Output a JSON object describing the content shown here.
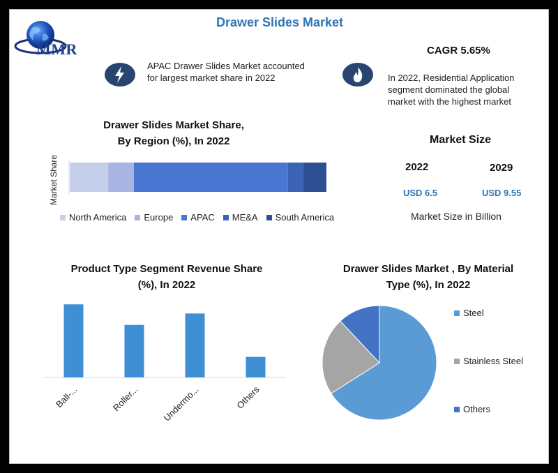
{
  "title": "Drawer Slides Market",
  "logo": {
    "text": "MMR",
    "icon": "globe-icon"
  },
  "note_left": {
    "icon": "lightning-icon",
    "lines": [
      "APAC Drawer Slides Market accounted",
      "for largest market share in 2022"
    ]
  },
  "cagr": "CAGR 5.65%",
  "note_right": {
    "icon": "flame-icon",
    "lines": [
      "In 2022, Residential Application",
      "segment dominated the global",
      "market with the highest market"
    ]
  },
  "market_size": {
    "title": "Market Size",
    "years": [
      "2022",
      "2029"
    ],
    "values": [
      "USD 6.5",
      "USD 9.55"
    ],
    "caption": "Market Size in Billion"
  },
  "chart_data": [
    {
      "type": "bar",
      "orientation": "horizontal-stacked",
      "title_lines": [
        "Drawer Slides Market Share,",
        "By Region (%), In 2022"
      ],
      "ylabel": "Market Share",
      "series": [
        {
          "name": "North America",
          "value": 15,
          "color": "#c5cfe9"
        },
        {
          "name": "Europe",
          "value": 10,
          "color": "#a8b5e2"
        },
        {
          "name": "APAC",
          "value": 60,
          "color": "#4876d0"
        },
        {
          "name": "ME&A",
          "value": 6,
          "color": "#3a62b5"
        },
        {
          "name": "South America",
          "value": 9,
          "color": "#2f4f93"
        }
      ]
    },
    {
      "type": "bar",
      "title_lines": [
        "Product Type Segment Revenue Share",
        "(%), In 2022"
      ],
      "categories": [
        "Ball-...",
        "Roller...",
        "Undermo...",
        "Others"
      ],
      "values": [
        32,
        23,
        28,
        9
      ],
      "ylim": [
        0,
        33
      ],
      "color": "#3f8fd4"
    },
    {
      "type": "pie",
      "title_lines": [
        "Drawer Slides Market , By Material",
        "Type (%), In 2022"
      ],
      "slices": [
        {
          "name": "Steel",
          "value": 66,
          "color": "#5b9bd5"
        },
        {
          "name": "Stainless Steel",
          "value": 22,
          "color": "#a5a5a5"
        },
        {
          "name": "Others",
          "value": 12,
          "color": "#4472c4"
        }
      ]
    }
  ]
}
